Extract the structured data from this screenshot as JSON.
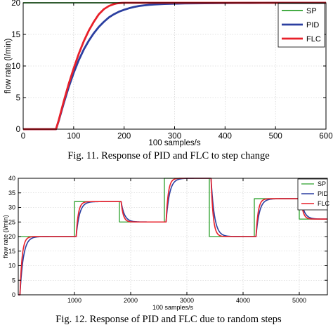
{
  "chart_data": [
    {
      "type": "line",
      "caption": "Fig. 11.  Response of PID and FLC to step change",
      "xlabel": "100 samples/s",
      "ylabel": "flow rate (l/min)",
      "xlim": [
        0,
        600
      ],
      "ylim": [
        0,
        20
      ],
      "xticks": [
        0,
        100,
        200,
        300,
        400,
        500,
        600
      ],
      "yticks": [
        0,
        5,
        10,
        15,
        20
      ],
      "grid": true,
      "legend": "top-right",
      "series": [
        {
          "name": "SP",
          "color": "#2ca02c",
          "x": [
            0,
            600
          ],
          "y": [
            20,
            20
          ]
        },
        {
          "name": "PID",
          "color": "#2b3fa0",
          "x": [
            0,
            65,
            70,
            80,
            90,
            100,
            110,
            120,
            130,
            140,
            150,
            160,
            170,
            180,
            190,
            200,
            210,
            220,
            230,
            240,
            250,
            260,
            280,
            300,
            320,
            340,
            360,
            380,
            400,
            425,
            450,
            475,
            500,
            550,
            600
          ],
          "y": [
            0,
            0,
            1.2,
            4.0,
            6.6,
            8.9,
            10.9,
            12.6,
            14.0,
            15.2,
            16.2,
            17.0,
            17.7,
            18.2,
            18.6,
            18.9,
            19.15,
            19.35,
            19.5,
            19.6,
            19.68,
            19.74,
            19.82,
            19.87,
            19.9,
            19.92,
            19.94,
            19.95,
            19.96,
            19.97,
            19.98,
            19.99,
            20,
            20,
            20
          ]
        },
        {
          "name": "FLC",
          "color": "#e8202a",
          "x": [
            0,
            65,
            70,
            80,
            90,
            100,
            110,
            120,
            130,
            140,
            150,
            160,
            170,
            180,
            185,
            190,
            195,
            200,
            205,
            210,
            220,
            600
          ],
          "y": [
            0,
            0,
            1.3,
            4.3,
            7.1,
            9.6,
            11.9,
            13.9,
            15.6,
            17.0,
            18.2,
            19.0,
            19.5,
            19.8,
            19.9,
            19.95,
            19.98,
            20,
            20,
            20,
            20,
            20
          ]
        }
      ]
    },
    {
      "type": "line",
      "caption": "Fig. 12.  Response of PID and FLC due to random steps",
      "xlabel": "100 samples/s",
      "ylabel": "flow rate (l/min)",
      "xlim": [
        0,
        5500
      ],
      "ylim": [
        0,
        40
      ],
      "xticks": [
        1000,
        2000,
        3000,
        4000,
        5000
      ],
      "yticks": [
        0,
        5,
        10,
        15,
        20,
        25,
        30,
        35,
        40
      ],
      "grid": true,
      "legend": "top-right",
      "sp_steps": [
        [
          0,
          20
        ],
        [
          1000,
          32
        ],
        [
          1800,
          25
        ],
        [
          2600,
          40
        ],
        [
          3400,
          20
        ],
        [
          4200,
          33
        ],
        [
          5000,
          26
        ]
      ],
      "series": [
        {
          "name": "SP",
          "color": "#2ca02c",
          "tau": 0
        },
        {
          "name": "PID",
          "color": "#2b3fa0",
          "tau": 60
        },
        {
          "name": "FLC",
          "color": "#e8202a",
          "tau": 38
        }
      ]
    }
  ]
}
